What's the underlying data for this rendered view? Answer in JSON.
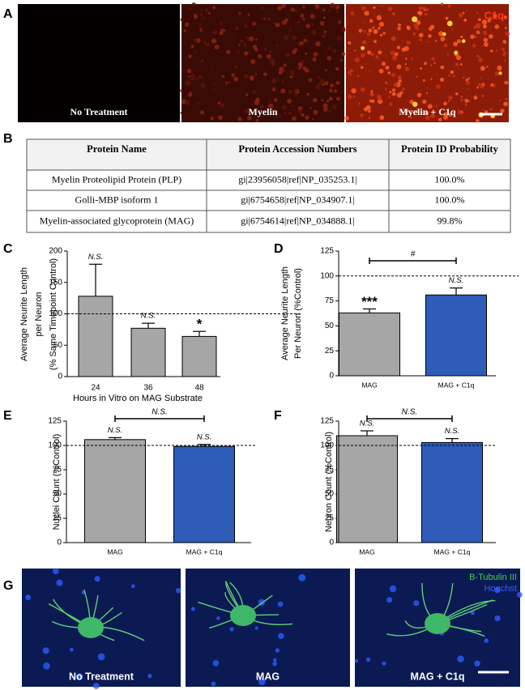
{
  "panels": [
    "A",
    "B",
    "C",
    "D",
    "E",
    "F",
    "G"
  ],
  "image_row_a": {
    "labels": [
      "No Treatment",
      "Myelin",
      "Myelin + C1q"
    ],
    "stain": "C1q"
  },
  "table": {
    "header": [
      "Protein Name",
      "Protein Accession Numbers",
      "Protein ID Probability"
    ],
    "rows": [
      [
        "Myelin Proteolipid Protein (PLP)",
        "gi|23956058|ref|NP_035253.1|",
        "100.0%"
      ],
      [
        "Golli-MBP isoform 1",
        "gi|6754658|ref|NP_034907.1|",
        "100.0%"
      ],
      [
        "Myelin-associated glycoprotein (MAG)",
        "gi|6754614|ref|NP_034888.1|",
        "99.8%"
      ]
    ]
  },
  "chart_data": [
    {
      "type": "bar",
      "y_label": [
        "Average Neurite Length",
        "per Neuron",
        "(% Same Timepoint Control)"
      ],
      "x_label": "Hours in Vitro on MAG Substrate",
      "categories": [
        "24",
        "36",
        "48"
      ],
      "values": [
        128,
        77,
        64
      ],
      "errors": [
        51,
        8,
        8
      ],
      "annotations": [
        "N.S.",
        "N.S.",
        "*"
      ],
      "colors": [
        "#a6a6a6",
        "#a6a6a6",
        "#a6a6a6"
      ],
      "ylim": [
        0,
        200
      ],
      "yticks": [
        0,
        50,
        100,
        150,
        200
      ],
      "reference_line": 100
    },
    {
      "type": "bar",
      "y_label": [
        "Average Neurite Length",
        "Per Neuron (%Control)"
      ],
      "categories": [
        "MAG",
        "MAG + C1q"
      ],
      "values": [
        63,
        81
      ],
      "errors": [
        4,
        7
      ],
      "annotations": [
        "***",
        "N.S."
      ],
      "bracket": "#",
      "colors": [
        "#a6a6a6",
        "#2e5cb8"
      ],
      "ylim": [
        0,
        125
      ],
      "yticks": [
        0,
        25,
        50,
        75,
        100,
        125
      ],
      "reference_line": 100
    },
    {
      "type": "bar",
      "y_label": [
        "Nuclei Count (%Control)"
      ],
      "categories": [
        "MAG",
        "MAG + C1q"
      ],
      "values": [
        106,
        99
      ],
      "errors": [
        2,
        2
      ],
      "annotations": [
        "N.S.",
        "N.S."
      ],
      "bracket": "N.S.",
      "colors": [
        "#a6a6a6",
        "#2e5cb8"
      ],
      "ylim": [
        0,
        125
      ],
      "yticks": [
        0,
        25,
        50,
        75,
        100,
        125
      ],
      "reference_line": 100
    },
    {
      "type": "bar",
      "y_label": [
        "Neuron Count (%Control)"
      ],
      "categories": [
        "MAG",
        "MAG + C1q"
      ],
      "values": [
        110,
        103
      ],
      "errors": [
        5,
        4
      ],
      "annotations": [
        "N.S.",
        "N.S."
      ],
      "bracket": "N.S.",
      "colors": [
        "#a6a6a6",
        "#2e5cb8"
      ],
      "ylim": [
        0,
        125
      ],
      "yticks": [
        0,
        25,
        50,
        75,
        100,
        125
      ],
      "reference_line": 100
    }
  ],
  "image_row_g": {
    "labels": [
      "No Treatment",
      "MAG",
      "MAG + C1q"
    ],
    "stains": [
      "B-Tubulin III",
      "Hoechst"
    ]
  }
}
